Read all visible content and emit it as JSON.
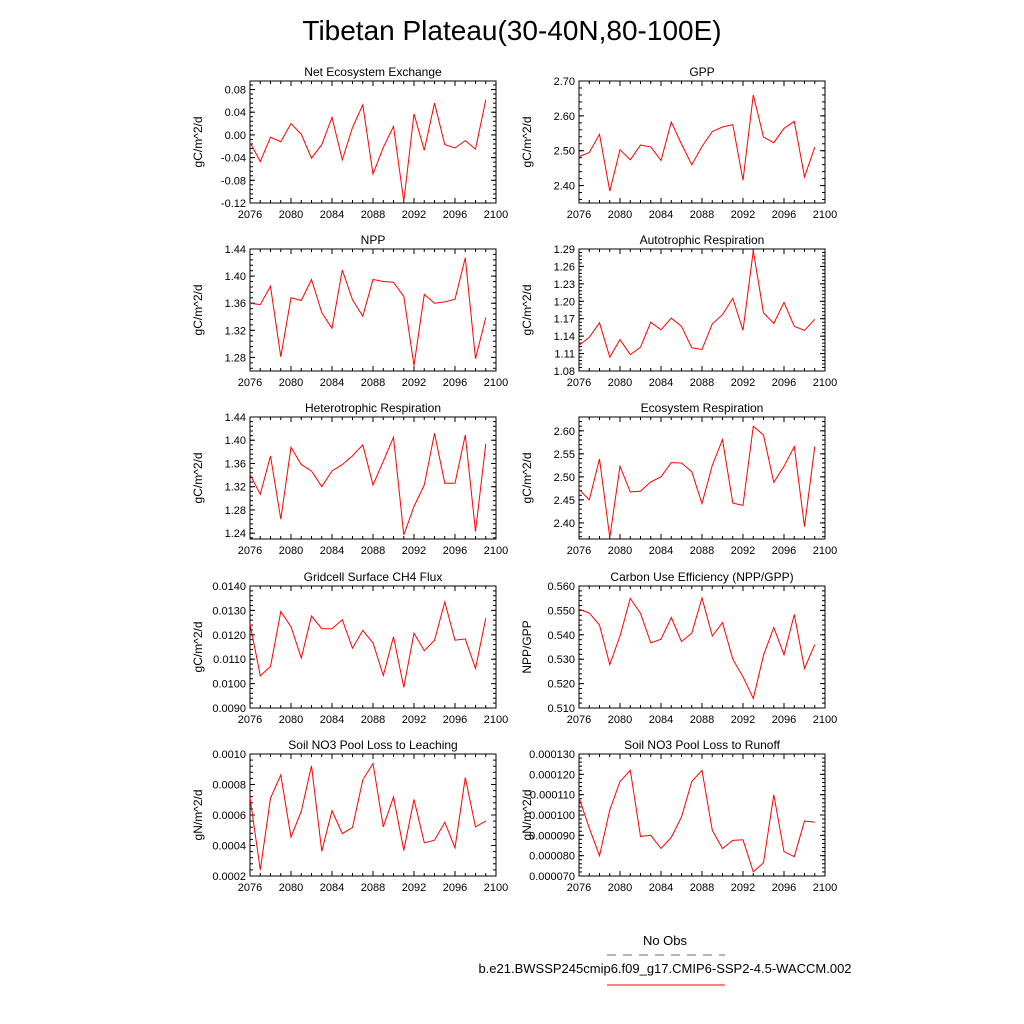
{
  "title": "Tibetan Plateau(30-40N,80-100E)",
  "colors": {
    "model_line": "#ff0000",
    "obs_line": "#6060c0",
    "axis": "#000000"
  },
  "legend": {
    "obs_label": "No Obs",
    "model_label": "b.e21.BWSSP245cmip6.f09_g17.CMIP6-SSP2-4.5-WACCM.002"
  },
  "chart_data": [
    {
      "type": "line",
      "title": "Net Ecosystem Exchange",
      "ylabel": "gC/m^2/d",
      "xlim": [
        2076,
        2100
      ],
      "xticks": [
        2076,
        2080,
        2084,
        2088,
        2092,
        2096,
        2100
      ],
      "ylim": [
        -0.12,
        0.095
      ],
      "yticks": [
        -0.12,
        -0.08,
        -0.04,
        0.0,
        0.04,
        0.08
      ],
      "ytick_labels": [
        "-0.12",
        "-0.08",
        "-0.04",
        "0.00",
        "0.04",
        "0.08"
      ],
      "x": [
        2076,
        2077,
        2078,
        2079,
        2080,
        2081,
        2082,
        2083,
        2084,
        2085,
        2086,
        2087,
        2088,
        2089,
        2090,
        2091,
        2092,
        2093,
        2094,
        2095,
        2096,
        2097,
        2098,
        2099
      ],
      "y": [
        -0.013,
        -0.047,
        -0.004,
        -0.012,
        0.02,
        0.001,
        -0.041,
        -0.017,
        0.031,
        -0.044,
        0.013,
        0.053,
        -0.069,
        -0.022,
        0.015,
        -0.117,
        0.037,
        -0.027,
        0.056,
        -0.017,
        -0.023,
        -0.01,
        -0.025,
        0.062
      ]
    },
    {
      "type": "line",
      "title": "GPP",
      "ylabel": "gC/m^2/d",
      "xlim": [
        2076,
        2100
      ],
      "xticks": [
        2076,
        2080,
        2084,
        2088,
        2092,
        2096,
        2100
      ],
      "ylim": [
        2.35,
        2.7
      ],
      "yticks": [
        2.4,
        2.5,
        2.6,
        2.7
      ],
      "ytick_labels": [
        "2.40",
        "2.50",
        "2.60",
        "2.70"
      ],
      "x": [
        2076,
        2077,
        2078,
        2079,
        2080,
        2081,
        2082,
        2083,
        2084,
        2085,
        2086,
        2087,
        2088,
        2089,
        2090,
        2091,
        2092,
        2093,
        2094,
        2095,
        2096,
        2097,
        2098,
        2099
      ],
      "y": [
        2.483,
        2.495,
        2.547,
        2.384,
        2.503,
        2.474,
        2.516,
        2.511,
        2.472,
        2.582,
        2.519,
        2.46,
        2.512,
        2.555,
        2.568,
        2.575,
        2.415,
        2.66,
        2.539,
        2.523,
        2.564,
        2.584,
        2.425,
        2.51
      ]
    },
    {
      "type": "line",
      "title": "NPP",
      "ylabel": "gC/m^2/d",
      "xlim": [
        2076,
        2100
      ],
      "xticks": [
        2076,
        2080,
        2084,
        2088,
        2092,
        2096,
        2100
      ],
      "ylim": [
        1.26,
        1.44
      ],
      "yticks": [
        1.28,
        1.32,
        1.36,
        1.4,
        1.44
      ],
      "ytick_labels": [
        "1.28",
        "1.32",
        "1.36",
        "1.40",
        "1.44"
      ],
      "x": [
        2076,
        2077,
        2078,
        2079,
        2080,
        2081,
        2082,
        2083,
        2084,
        2085,
        2086,
        2087,
        2088,
        2089,
        2090,
        2091,
        2092,
        2093,
        2094,
        2095,
        2096,
        2097,
        2098,
        2099
      ],
      "y": [
        1.36,
        1.358,
        1.385,
        1.281,
        1.368,
        1.364,
        1.395,
        1.346,
        1.323,
        1.409,
        1.365,
        1.341,
        1.395,
        1.392,
        1.391,
        1.37,
        1.268,
        1.373,
        1.36,
        1.362,
        1.366,
        1.427,
        1.278,
        1.339
      ]
    },
    {
      "type": "line",
      "title": "Autotrophic Respiration",
      "ylabel": "gC/m^2/d",
      "xlim": [
        2076,
        2100
      ],
      "xticks": [
        2076,
        2080,
        2084,
        2088,
        2092,
        2096,
        2100
      ],
      "ylim": [
        1.08,
        1.29
      ],
      "yticks": [
        1.08,
        1.11,
        1.14,
        1.17,
        1.2,
        1.23,
        1.26,
        1.29
      ],
      "ytick_labels": [
        "1.08",
        "1.11",
        "1.14",
        "1.17",
        "1.20",
        "1.23",
        "1.26",
        "1.29"
      ],
      "x": [
        2076,
        2077,
        2078,
        2079,
        2080,
        2081,
        2082,
        2083,
        2084,
        2085,
        2086,
        2087,
        2088,
        2089,
        2090,
        2091,
        2092,
        2093,
        2094,
        2095,
        2096,
        2097,
        2098,
        2099
      ],
      "y": [
        1.124,
        1.138,
        1.163,
        1.104,
        1.134,
        1.108,
        1.121,
        1.164,
        1.151,
        1.171,
        1.157,
        1.12,
        1.117,
        1.161,
        1.177,
        1.205,
        1.15,
        1.287,
        1.18,
        1.162,
        1.198,
        1.157,
        1.15,
        1.169
      ]
    },
    {
      "type": "line",
      "title": "Heterotrophic Respiration",
      "ylabel": "gC/m^2/d",
      "xlim": [
        2076,
        2100
      ],
      "xticks": [
        2076,
        2080,
        2084,
        2088,
        2092,
        2096,
        2100
      ],
      "ylim": [
        1.23,
        1.44
      ],
      "yticks": [
        1.24,
        1.28,
        1.32,
        1.36,
        1.4,
        1.44
      ],
      "ytick_labels": [
        "1.24",
        "1.28",
        "1.32",
        "1.36",
        "1.40",
        "1.44"
      ],
      "x": [
        2076,
        2077,
        2078,
        2079,
        2080,
        2081,
        2082,
        2083,
        2084,
        2085,
        2086,
        2087,
        2088,
        2089,
        2090,
        2091,
        2092,
        2093,
        2094,
        2095,
        2096,
        2097,
        2098,
        2099
      ],
      "y": [
        1.341,
        1.307,
        1.373,
        1.264,
        1.388,
        1.358,
        1.347,
        1.32,
        1.347,
        1.358,
        1.373,
        1.392,
        1.323,
        1.364,
        1.405,
        1.237,
        1.286,
        1.323,
        1.412,
        1.326,
        1.326,
        1.409,
        1.243,
        1.394
      ]
    },
    {
      "type": "line",
      "title": "Ecosystem Respiration",
      "ylabel": "gC/m^2/d",
      "xlim": [
        2076,
        2100
      ],
      "xticks": [
        2076,
        2080,
        2084,
        2088,
        2092,
        2096,
        2100
      ],
      "ylim": [
        2.365,
        2.63
      ],
      "yticks": [
        2.4,
        2.45,
        2.5,
        2.55,
        2.6
      ],
      "ytick_labels": [
        "2.40",
        "2.45",
        "2.50",
        "2.55",
        "2.60"
      ],
      "x": [
        2076,
        2077,
        2078,
        2079,
        2080,
        2081,
        2082,
        2083,
        2084,
        2085,
        2086,
        2087,
        2088,
        2089,
        2090,
        2091,
        2092,
        2093,
        2094,
        2095,
        2096,
        2097,
        2098,
        2099
      ],
      "y": [
        2.473,
        2.45,
        2.539,
        2.368,
        2.523,
        2.467,
        2.469,
        2.489,
        2.5,
        2.531,
        2.53,
        2.511,
        2.442,
        2.525,
        2.581,
        2.443,
        2.438,
        2.61,
        2.591,
        2.488,
        2.523,
        2.566,
        2.392,
        2.566
      ]
    },
    {
      "type": "line",
      "title": "Gridcell Surface CH4 Flux",
      "ylabel": "gC/m^2/d",
      "xlim": [
        2076,
        2100
      ],
      "xticks": [
        2076,
        2080,
        2084,
        2088,
        2092,
        2096,
        2100
      ],
      "ylim": [
        0.009,
        0.014
      ],
      "yticks": [
        0.009,
        0.01,
        0.011,
        0.012,
        0.013,
        0.014
      ],
      "ytick_labels": [
        "0.0090",
        "0.0100",
        "0.0110",
        "0.0120",
        "0.0130",
        "0.0140"
      ],
      "x": [
        2076,
        2077,
        2078,
        2079,
        2080,
        2081,
        2082,
        2083,
        2084,
        2085,
        2086,
        2087,
        2088,
        2089,
        2090,
        2091,
        2092,
        2093,
        2094,
        2095,
        2096,
        2097,
        2098,
        2099
      ],
      "y": [
        0.01245,
        0.01032,
        0.0107,
        0.01295,
        0.01233,
        0.01105,
        0.01277,
        0.01225,
        0.01225,
        0.01262,
        0.01145,
        0.01218,
        0.01167,
        0.01033,
        0.01192,
        0.00985,
        0.01207,
        0.01135,
        0.01177,
        0.01335,
        0.01178,
        0.01183,
        0.01062,
        0.01268
      ]
    },
    {
      "type": "line",
      "title": "Carbon Use Efficiency (NPP/GPP)",
      "ylabel": "NPP/GPP",
      "xlim": [
        2076,
        2100
      ],
      "xticks": [
        2076,
        2080,
        2084,
        2088,
        2092,
        2096,
        2100
      ],
      "ylim": [
        0.51,
        0.56
      ],
      "yticks": [
        0.51,
        0.52,
        0.53,
        0.54,
        0.55,
        0.56
      ],
      "ytick_labels": [
        "0.510",
        "0.520",
        "0.530",
        "0.540",
        "0.550",
        "0.560"
      ],
      "x": [
        2076,
        2077,
        2078,
        2079,
        2080,
        2081,
        2082,
        2083,
        2084,
        2085,
        2086,
        2087,
        2088,
        2089,
        2090,
        2091,
        2092,
        2093,
        2094,
        2095,
        2096,
        2097,
        2098,
        2099
      ],
      "y": [
        0.5505,
        0.5489,
        0.544,
        0.5278,
        0.5395,
        0.5549,
        0.5488,
        0.5367,
        0.5382,
        0.5471,
        0.5372,
        0.5407,
        0.5551,
        0.5395,
        0.545,
        0.53,
        0.5228,
        0.5139,
        0.5316,
        0.543,
        0.5318,
        0.5483,
        0.5262,
        0.536
      ]
    },
    {
      "type": "line",
      "title": "Soil NO3 Pool Loss to Leaching",
      "ylabel": "gN/m^2/d",
      "xlim": [
        2076,
        2100
      ],
      "xticks": [
        2076,
        2080,
        2084,
        2088,
        2092,
        2096,
        2100
      ],
      "ylim": [
        0.0002,
        0.001
      ],
      "yticks": [
        0.0002,
        0.0004,
        0.0006,
        0.0008,
        0.001
      ],
      "ytick_labels": [
        "0.0002",
        "0.0004",
        "0.0006",
        "0.0008",
        "0.0010"
      ],
      "x": [
        2076,
        2077,
        2078,
        2079,
        2080,
        2081,
        2082,
        2083,
        2084,
        2085,
        2086,
        2087,
        2088,
        2089,
        2090,
        2091,
        2092,
        2093,
        2094,
        2095,
        2096,
        2097,
        2098,
        2099
      ],
      "y": [
        0.000715,
        0.00024,
        0.00071,
        0.000862,
        0.000455,
        0.000625,
        0.000922,
        0.000362,
        0.000628,
        0.000478,
        0.000518,
        0.00083,
        0.000938,
        0.000522,
        0.000718,
        0.000368,
        0.000702,
        0.000418,
        0.000435,
        0.000552,
        0.000385,
        0.000845,
        0.000522,
        0.00056
      ]
    },
    {
      "type": "line",
      "title": "Soil NO3 Pool Loss to Runoff",
      "ylabel": "gN/m^2/d",
      "xlim": [
        2076,
        2100
      ],
      "xticks": [
        2076,
        2080,
        2084,
        2088,
        2092,
        2096,
        2100
      ],
      "ylim": [
        7e-05,
        0.00013
      ],
      "yticks": [
        7e-05,
        8e-05,
        9e-05,
        0.0001,
        0.00011,
        0.00012,
        0.00013
      ],
      "ytick_labels": [
        "0.000070",
        "0.000080",
        "0.000090",
        "0.000100",
        "0.000110",
        "0.000120",
        "0.000130"
      ],
      "x": [
        2076,
        2077,
        2078,
        2079,
        2080,
        2081,
        2082,
        2083,
        2084,
        2085,
        2086,
        2087,
        2088,
        2089,
        2090,
        2091,
        2092,
        2093,
        2094,
        2095,
        2096,
        2097,
        2098,
        2099
      ],
      "y": [
        0.0001085,
        9.35e-05,
        8e-05,
        0.0001025,
        0.0001165,
        0.000122,
        8.95e-05,
        9e-05,
        8.35e-05,
        8.9e-05,
        9.9e-05,
        0.0001165,
        0.000122,
        9.25e-05,
        8.35e-05,
        8.75e-05,
        8.78e-05,
        7.2e-05,
        7.65e-05,
        0.00011,
        8.2e-05,
        7.95e-05,
        9.7e-05,
        9.65e-05
      ]
    }
  ]
}
